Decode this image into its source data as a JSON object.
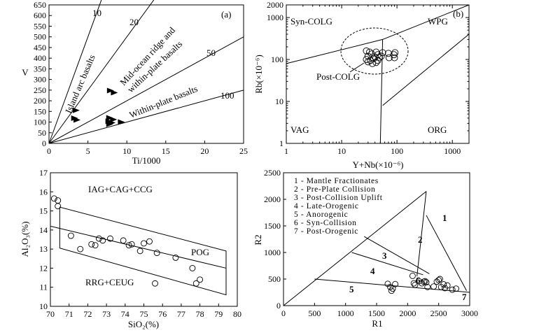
{
  "chart_data": [
    {
      "id": "a",
      "type": "scatter",
      "panel_label": "(a)",
      "xlabel": "Ti/1000",
      "ylabel": "V",
      "xlim": [
        0,
        25
      ],
      "ylim": [
        0,
        650
      ],
      "xticks": [
        0,
        5,
        10,
        15,
        20,
        25
      ],
      "yticks": [
        0,
        50,
        100,
        150,
        200,
        250,
        300,
        350,
        400,
        450,
        500,
        550,
        600,
        650
      ],
      "ratio_lines": [
        {
          "label": "10",
          "ratio": 10
        },
        {
          "label": "20",
          "ratio": 20
        },
        {
          "label": "50",
          "ratio": 50
        },
        {
          "label": "100",
          "ratio": 100
        }
      ],
      "field_labels": [
        "Island arc basalts",
        "Mid-ocean ridge and",
        "within-plate basalts",
        "Within-plate basalts"
      ],
      "points": [
        {
          "x": 3.5,
          "y": 155
        },
        {
          "x": 3.3,
          "y": 118
        },
        {
          "x": 3.6,
          "y": 110
        },
        {
          "x": 7.9,
          "y": 248
        },
        {
          "x": 8.4,
          "y": 238
        },
        {
          "x": 7.8,
          "y": 120
        },
        {
          "x": 8.3,
          "y": 112
        },
        {
          "x": 7.7,
          "y": 104
        },
        {
          "x": 8.1,
          "y": 97
        },
        {
          "x": 7.8,
          "y": 90
        },
        {
          "x": 9.3,
          "y": 100
        }
      ]
    },
    {
      "id": "b",
      "type": "scatter",
      "panel_label": "(b)",
      "xlabel": "Y+Nb(×10⁻⁶)",
      "ylabel": "Rb(×10⁻⁶)",
      "xscale": "log",
      "yscale": "log",
      "xlim": [
        1,
        2000
      ],
      "ylim": [
        1,
        2000
      ],
      "xticks": [
        "1",
        "10",
        "100",
        "1000"
      ],
      "yticks": [
        "1",
        "10",
        "100",
        "1000",
        "2000"
      ],
      "field_labels": [
        "Syn-COLG",
        "WPG",
        "VAG",
        "ORG",
        "Post-COLG"
      ],
      "points": [
        {
          "x": 28,
          "y": 160
        },
        {
          "x": 32,
          "y": 150
        },
        {
          "x": 35,
          "y": 135
        },
        {
          "x": 30,
          "y": 120
        },
        {
          "x": 28,
          "y": 100
        },
        {
          "x": 33,
          "y": 95
        },
        {
          "x": 30,
          "y": 88
        },
        {
          "x": 38,
          "y": 105
        },
        {
          "x": 40,
          "y": 115
        },
        {
          "x": 42,
          "y": 150
        },
        {
          "x": 45,
          "y": 130
        },
        {
          "x": 48,
          "y": 110
        },
        {
          "x": 45,
          "y": 95
        },
        {
          "x": 42,
          "y": 85
        },
        {
          "x": 52,
          "y": 120
        },
        {
          "x": 55,
          "y": 145
        },
        {
          "x": 70,
          "y": 140
        },
        {
          "x": 72,
          "y": 110
        },
        {
          "x": 88,
          "y": 130
        },
        {
          "x": 92,
          "y": 145
        },
        {
          "x": 90,
          "y": 110
        },
        {
          "x": 36,
          "y": 80
        }
      ]
    },
    {
      "id": "c",
      "type": "scatter",
      "xlabel": "SiO₂(%)",
      "ylabel": "Al₂O₃(%)",
      "xlim": [
        70,
        80
      ],
      "ylim": [
        10,
        17
      ],
      "xticks": [
        70,
        71,
        72,
        73,
        74,
        75,
        76,
        77,
        78,
        79,
        80
      ],
      "yticks": [
        10,
        11,
        12,
        13,
        14,
        15,
        16,
        17
      ],
      "field_labels": [
        "IAG+CAG+CCG",
        "POG",
        "RRG+CEUG"
      ],
      "points": [
        {
          "x": 70.2,
          "y": 15.65
        },
        {
          "x": 70.4,
          "y": 15.55
        },
        {
          "x": 70.4,
          "y": 15.25
        },
        {
          "x": 71.1,
          "y": 13.7
        },
        {
          "x": 71.6,
          "y": 13.0
        },
        {
          "x": 72.2,
          "y": 13.25
        },
        {
          "x": 72.4,
          "y": 13.2
        },
        {
          "x": 72.6,
          "y": 13.55
        },
        {
          "x": 72.8,
          "y": 13.45
        },
        {
          "x": 73.2,
          "y": 13.55
        },
        {
          "x": 73.9,
          "y": 13.45
        },
        {
          "x": 74.2,
          "y": 13.2
        },
        {
          "x": 74.35,
          "y": 13.25
        },
        {
          "x": 74.8,
          "y": 12.9
        },
        {
          "x": 75.0,
          "y": 13.3
        },
        {
          "x": 75.3,
          "y": 13.4
        },
        {
          "x": 75.7,
          "y": 12.8
        },
        {
          "x": 75.6,
          "y": 11.2
        },
        {
          "x": 76.7,
          "y": 12.55
        },
        {
          "x": 77.6,
          "y": 12.0
        },
        {
          "x": 77.8,
          "y": 11.2
        },
        {
          "x": 78.0,
          "y": 11.4
        }
      ]
    },
    {
      "id": "d",
      "type": "scatter",
      "xlabel": "R1",
      "ylabel": "R2",
      "xlim": [
        0,
        3000
      ],
      "ylim": [
        0,
        2500
      ],
      "xticks": [
        0,
        500,
        1000,
        1500,
        2000,
        2500,
        3000
      ],
      "yticks": [
        0,
        500,
        1000,
        1500,
        2000,
        2500
      ],
      "legend": [
        "1 - Mantle Fractionates",
        "2 - Pre-Plate Collision",
        "3 - Post-Collision Uplift",
        "4 - Late-Orogenic",
        "5 - Anorogenic",
        "6 - Syn-Collision",
        "7 - Post-Orogenic"
      ],
      "field_numbers": [
        "1",
        "2",
        "3",
        "4",
        "5",
        "6",
        "7"
      ],
      "points": [
        {
          "x": 1680,
          "y": 410
        },
        {
          "x": 1720,
          "y": 350
        },
        {
          "x": 1760,
          "y": 320
        },
        {
          "x": 1800,
          "y": 405
        },
        {
          "x": 1740,
          "y": 280
        },
        {
          "x": 2080,
          "y": 560
        },
        {
          "x": 2100,
          "y": 420
        },
        {
          "x": 2120,
          "y": 390
        },
        {
          "x": 2180,
          "y": 460
        },
        {
          "x": 2230,
          "y": 420
        },
        {
          "x": 2260,
          "y": 450
        },
        {
          "x": 2280,
          "y": 460
        },
        {
          "x": 2300,
          "y": 440
        },
        {
          "x": 2320,
          "y": 350
        },
        {
          "x": 2420,
          "y": 360
        },
        {
          "x": 2470,
          "y": 450
        },
        {
          "x": 2500,
          "y": 480
        },
        {
          "x": 2520,
          "y": 500
        },
        {
          "x": 2540,
          "y": 350
        },
        {
          "x": 2580,
          "y": 400
        },
        {
          "x": 2600,
          "y": 330
        },
        {
          "x": 2720,
          "y": 300
        },
        {
          "x": 2780,
          "y": 320
        },
        {
          "x": 2640,
          "y": 380
        }
      ]
    }
  ]
}
